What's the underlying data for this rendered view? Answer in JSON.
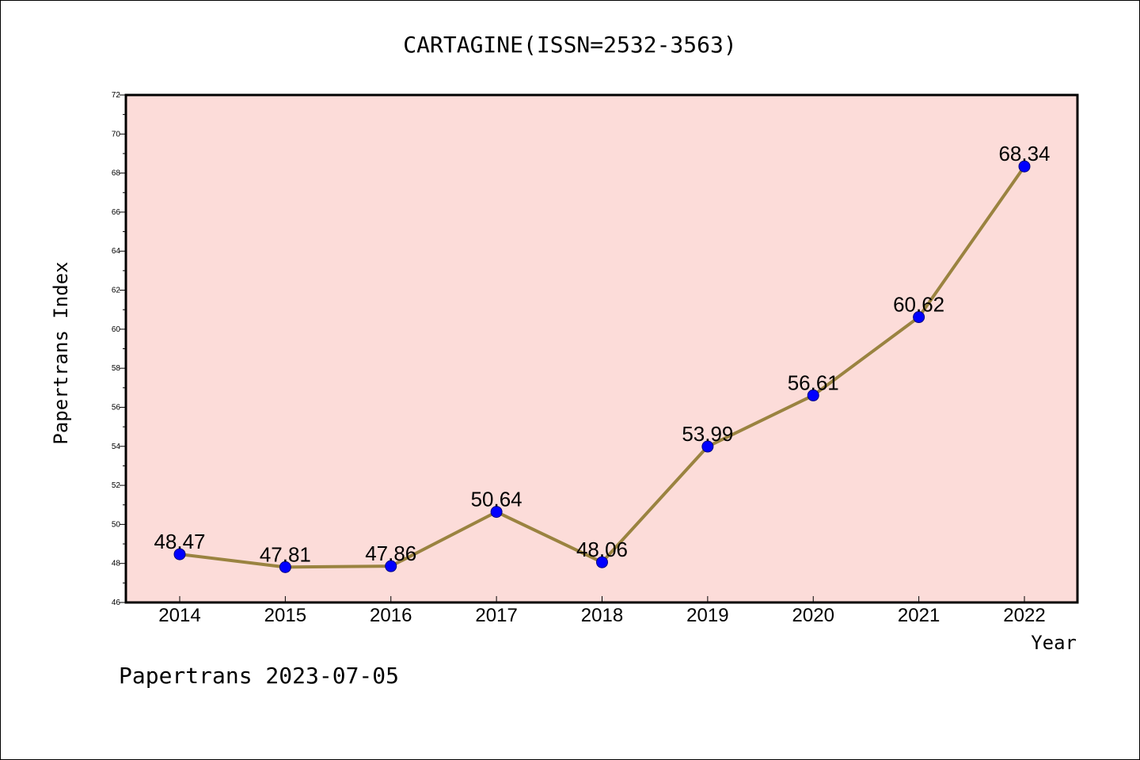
{
  "chart_data": {
    "type": "line",
    "title": "CARTAGINE(ISSN=2532-3563)",
    "xlabel": "Year",
    "ylabel": "Papertrans Index",
    "x": [
      "2014",
      "2015",
      "2016",
      "2017",
      "2018",
      "2019",
      "2020",
      "2021",
      "2022"
    ],
    "series": [
      {
        "values": [
          48.47,
          47.81,
          47.86,
          50.64,
          48.06,
          53.99,
          56.61,
          60.62,
          68.34
        ],
        "labels": [
          "48.47",
          "47.81",
          "47.86",
          "50.64",
          "48.06",
          "53.99",
          "56.61",
          "60.62",
          "68.34"
        ]
      }
    ],
    "ylim": [
      46,
      72
    ],
    "yticks": [
      "46",
      "48",
      "50",
      "52",
      "54",
      "56",
      "58",
      "60",
      "62",
      "64",
      "66",
      "68",
      "70",
      "72"
    ],
    "grid": false,
    "legend": "none",
    "colors": {
      "plot_background": "#fcdcd9",
      "line": "#9a8340",
      "marker": "#0000ff",
      "marker_edge": "#000080"
    },
    "footer": "Papertrans 2023-07-05"
  }
}
